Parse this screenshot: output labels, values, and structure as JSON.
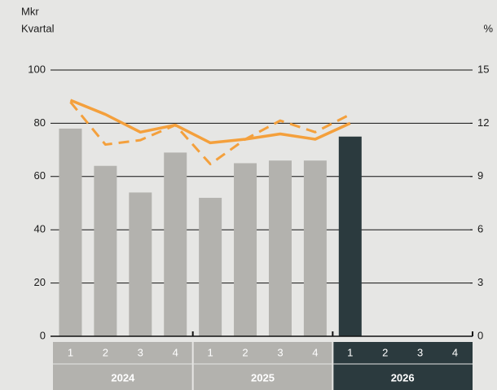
{
  "chart_data": {
    "type": "bar",
    "y_unit_label": "Mkr",
    "x_axis_label": "Kvartal",
    "y2_unit_label": "%",
    "categories": [
      "1",
      "2",
      "3",
      "4",
      "1",
      "2",
      "3",
      "4",
      "1",
      "2",
      "3",
      "4"
    ],
    "years": [
      "2024",
      "2025",
      "2026"
    ],
    "year_colors": [
      "#b3b2ae",
      "#b3b2ae",
      "#2b3a3e"
    ],
    "ylim": [
      0,
      100
    ],
    "yticks": [
      0,
      20,
      40,
      60,
      80,
      100
    ],
    "y2lim": [
      0,
      15
    ],
    "y2ticks": [
      0,
      3,
      6,
      9,
      12,
      15
    ],
    "grid": true,
    "series": [
      {
        "type": "bar",
        "values": [
          78,
          64,
          54,
          69,
          52,
          65,
          66,
          66,
          75,
          null,
          null,
          null
        ],
        "colors": [
          "#b3b2ae",
          "#b3b2ae",
          "#b3b2ae",
          "#b3b2ae",
          "#b3b2ae",
          "#b3b2ae",
          "#b3b2ae",
          "#b3b2ae",
          "#2b3a3e",
          "#2b3a3e",
          "#2b3a3e",
          "#2b3a3e"
        ]
      },
      {
        "type": "line",
        "axis": "y2",
        "color": "#f4a03c",
        "dashed": false,
        "values": [
          13.3,
          12.5,
          11.5,
          11.9,
          10.9,
          11.1,
          11.4,
          11.1,
          12.0,
          null,
          null,
          null
        ]
      },
      {
        "type": "line",
        "axis": "y2",
        "color": "#f4a03c",
        "dashed": true,
        "values": [
          13.2,
          10.8,
          11.05,
          11.9,
          9.7,
          11.1,
          12.15,
          11.5,
          12.5,
          null,
          null,
          null
        ]
      }
    ]
  }
}
